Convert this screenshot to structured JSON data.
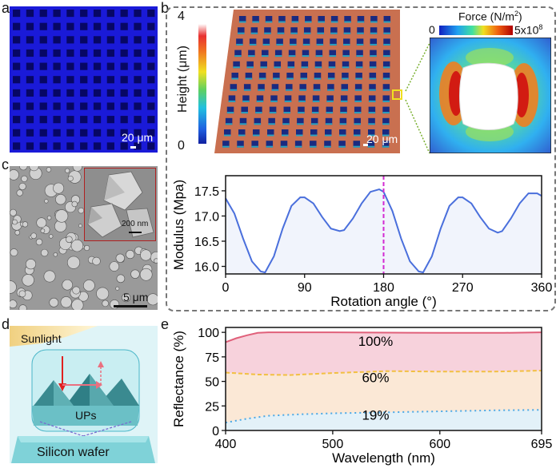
{
  "figure": {
    "panel_labels": {
      "a": "a",
      "b": "b",
      "c": "c",
      "d": "d",
      "e": "e"
    },
    "panel_a": {
      "scale_bar": "20 μm"
    },
    "panel_b": {
      "height_colorbar": {
        "label": "Height (μm)",
        "max": "4",
        "min": "0"
      },
      "height_scale_bar": "20 μm",
      "force_colorbar": {
        "label": "Force (N/m",
        "label_sup": "2",
        "label_end": ")",
        "min": "0",
        "max": "5x10",
        "max_sup": "8"
      }
    },
    "panel_c": {
      "scale_bar": "5 μm",
      "inset_scale_bar": "200 nm"
    },
    "panel_d": {
      "sunlight": "Sunlight",
      "ups": "UPs",
      "wafer": "Silicon wafer"
    },
    "colors": {
      "modulus_line": "#4a6fdc",
      "marker": "#d22ad2",
      "r100": "#e0607a",
      "r60": "#f2c041",
      "r19": "#4aa8e6"
    }
  },
  "chart_data": [
    {
      "type": "line",
      "title": "",
      "xlabel": "Rotation angle (°)",
      "ylabel": "Modulus (Mpa)",
      "xlim": [
        0,
        360
      ],
      "ylim": [
        15.85,
        17.8
      ],
      "xticks": [
        "0",
        "90",
        "180",
        "270",
        "360"
      ],
      "xtick_values": [
        0,
        90,
        180,
        270,
        360
      ],
      "yticks": [
        "16.0",
        "16.5",
        "17.0",
        "17.5"
      ],
      "ytick_values": [
        16.0,
        16.5,
        17.0,
        17.5
      ],
      "marker_x": 180,
      "series": [
        {
          "name": "Modulus",
          "x": [
            0,
            10,
            20,
            30,
            40,
            45,
            55,
            65,
            75,
            85,
            90,
            100,
            110,
            120,
            130,
            135,
            145,
            155,
            165,
            175,
            180,
            190,
            200,
            210,
            220,
            225,
            235,
            245,
            255,
            265,
            270,
            280,
            290,
            300,
            310,
            315,
            325,
            335,
            345,
            355,
            360
          ],
          "values": [
            17.35,
            17.05,
            16.55,
            16.1,
            15.9,
            15.88,
            16.2,
            16.75,
            17.2,
            17.37,
            17.37,
            17.25,
            16.98,
            16.75,
            16.7,
            16.72,
            16.95,
            17.25,
            17.48,
            17.53,
            17.48,
            17.1,
            16.55,
            16.1,
            15.9,
            15.88,
            16.2,
            16.75,
            17.2,
            17.37,
            17.37,
            17.25,
            16.98,
            16.75,
            16.67,
            16.7,
            16.95,
            17.25,
            17.45,
            17.45,
            17.4
          ]
        }
      ]
    },
    {
      "type": "area",
      "title": "",
      "xlabel": "Wavelength (nm)",
      "ylabel": "Reflectance (%)",
      "xlim": [
        400,
        695
      ],
      "ylim": [
        0,
        105
      ],
      "xticks": [
        "400",
        "500",
        "600",
        "695"
      ],
      "xtick_values": [
        400,
        500,
        600,
        695
      ],
      "yticks": [
        "0",
        "25",
        "50",
        "75",
        "100"
      ],
      "ytick_values": [
        0,
        25,
        50,
        75,
        100
      ],
      "series": [
        {
          "name": "100%",
          "x": [
            400,
            410,
            420,
            430,
            440,
            500,
            600,
            660,
            695
          ],
          "values": [
            90,
            94,
            97,
            99.5,
            100,
            100,
            99.5,
            99.5,
            100
          ]
        },
        {
          "name": "60%",
          "x": [
            400,
            430,
            460,
            500,
            550,
            600,
            650,
            695
          ],
          "values": [
            59,
            57,
            56.5,
            58.5,
            60.5,
            60,
            60,
            61
          ]
        },
        {
          "name": "19%",
          "x": [
            400,
            420,
            440,
            470,
            500,
            550,
            600,
            650,
            695
          ],
          "values": [
            8,
            12,
            15,
            16.5,
            17.5,
            18.5,
            19.5,
            20.5,
            21
          ]
        }
      ]
    }
  ]
}
